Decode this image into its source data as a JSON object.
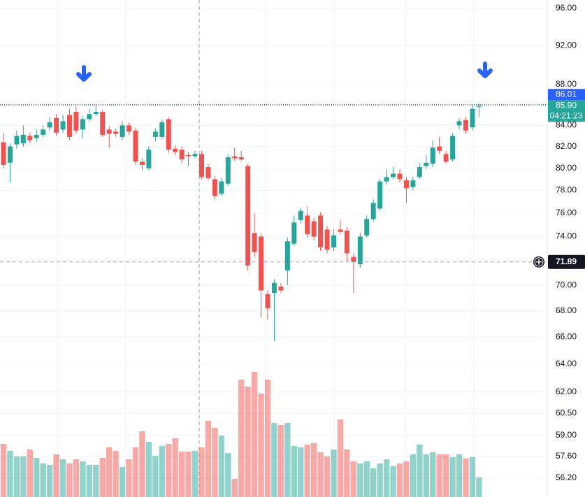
{
  "chart_data": {
    "type": "candlestick",
    "open": [
      82.4,
      80.5,
      82.2,
      82.3,
      83.0,
      82.8,
      83.1,
      83.8,
      84.7,
      83.6,
      85.0,
      85.3,
      83.6,
      84.6,
      85.1,
      85.3,
      83.6,
      83.4,
      82.9,
      84.0,
      83.5,
      80.6,
      80.0,
      82.9,
      82.9,
      84.6,
      81.8,
      81.7,
      81.2,
      81.1,
      81.3,
      80.1,
      79.0,
      77.7,
      78.6,
      81.1,
      81.0,
      80.2,
      74.3,
      74.0,
      69.3,
      69.4,
      69.9,
      71.2,
      73.4,
      75.4,
      75.8,
      75.3,
      75.8,
      74.6,
      73.1,
      74.6,
      74.5,
      72.3,
      71.7,
      74.1,
      75.5,
      76.4,
      78.8,
      79.2,
      79.5,
      78.9,
      78.3,
      79.2,
      80.2,
      80.4,
      82.0,
      81.3,
      80.8,
      84.0,
      84.5,
      83.8,
      85.8
    ],
    "high": [
      83.3,
      82.3,
      83.5,
      84.0,
      83.3,
      83.6,
      84.0,
      84.8,
      85.1,
      85.0,
      85.6,
      85.8,
      84.9,
      85.6,
      85.9,
      85.5,
      83.9,
      83.7,
      84.4,
      84.3,
      83.8,
      80.9,
      82.0,
      83.7,
      84.6,
      84.8,
      82.1,
      82.0,
      81.5,
      81.6,
      81.6,
      80.4,
      79.3,
      79.1,
      81.3,
      81.9,
      81.6,
      80.4,
      76.0,
      74.3,
      69.6,
      70.5,
      70.2,
      73.9,
      75.8,
      76.5,
      76.6,
      75.6,
      76.1,
      74.9,
      74.6,
      75.4,
      74.8,
      72.6,
      74.3,
      75.8,
      77.2,
      79.0,
      79.9,
      80.1,
      79.9,
      79.2,
      79.2,
      80.4,
      81.2,
      82.6,
      82.9,
      81.6,
      83.3,
      84.7,
      84.8,
      86.0,
      86.1
    ],
    "low": [
      80.0,
      78.7,
      81.8,
      82.0,
      82.3,
      82.5,
      82.9,
      83.5,
      83.0,
      83.3,
      82.6,
      83.2,
      82.8,
      84.4,
      84.9,
      82.9,
      81.9,
      82.9,
      82.6,
      83.1,
      80.3,
      79.8,
      79.8,
      82.5,
      82.7,
      81.4,
      81.2,
      80.5,
      80.2,
      80.9,
      79.0,
      78.9,
      77.2,
      77.5,
      78.4,
      80.7,
      80.6,
      71.2,
      72.3,
      67.5,
      67.3,
      65.7,
      69.4,
      70.0,
      73.2,
      75.1,
      73.9,
      73.7,
      72.8,
      72.6,
      72.8,
      74.2,
      71.9,
      69.4,
      71.4,
      73.9,
      75.3,
      76.2,
      78.5,
      79.0,
      78.7,
      76.9,
      78.0,
      79.0,
      79.9,
      80.1,
      81.3,
      80.4,
      80.6,
      83.6,
      83.2,
      83.5,
      84.8
    ],
    "close": [
      80.3,
      82.0,
      83.0,
      83.1,
      82.6,
      83.1,
      83.6,
      84.3,
      83.3,
      84.4,
      82.9,
      83.5,
      84.6,
      85.1,
      85.3,
      83.1,
      83.2,
      83.2,
      84.0,
      83.4,
      80.6,
      80.3,
      81.7,
      83.4,
      84.3,
      81.7,
      81.5,
      80.8,
      81.1,
      81.3,
      79.2,
      79.1,
      77.5,
      78.8,
      81.0,
      80.9,
      80.8,
      71.6,
      72.7,
      69.6,
      68.2,
      70.2,
      69.6,
      73.6,
      75.2,
      76.2,
      74.2,
      74.0,
      73.1,
      72.9,
      74.1,
      74.4,
      72.6,
      71.9,
      74.0,
      75.5,
      76.9,
      78.8,
      79.2,
      79.5,
      79.0,
      78.2,
      78.9,
      80.1,
      80.5,
      81.9,
      81.6,
      80.6,
      83.0,
      84.4,
      83.5,
      85.6,
      85.9
    ],
    "volume": [
      76,
      66,
      58,
      58,
      68,
      56,
      48,
      46,
      61,
      54,
      48,
      54,
      51,
      46,
      46,
      56,
      71,
      66,
      43,
      54,
      71,
      94,
      79,
      59,
      73,
      76,
      84,
      65,
      65,
      66,
      71,
      109,
      99,
      88,
      63,
      26,
      168,
      158,
      179,
      148,
      168,
      106,
      103,
      106,
      73,
      71,
      75,
      77,
      64,
      58,
      68,
      111,
      68,
      51,
      48,
      51,
      41,
      48,
      54,
      44,
      48,
      51,
      61,
      75,
      61,
      64,
      61,
      61,
      57,
      61,
      55,
      57,
      28
    ],
    "vlim": [
      0,
      200
    ],
    "ylim": [
      55.0,
      96.9
    ],
    "log_scale": true,
    "grid": true,
    "yticks": [
      {
        "value": 96,
        "label": "96.00"
      },
      {
        "value": 92,
        "label": "92.00"
      },
      {
        "value": 88,
        "label": "88.00"
      },
      {
        "value": 84,
        "label": "84.00"
      },
      {
        "value": 82,
        "label": "82.00"
      },
      {
        "value": 80,
        "label": "80.00"
      },
      {
        "value": 78,
        "label": "78.00"
      },
      {
        "value": 76,
        "label": "76.00"
      },
      {
        "value": 74,
        "label": "74.00"
      },
      {
        "value": 70,
        "label": "70.00"
      },
      {
        "value": 68,
        "label": "68.00"
      },
      {
        "value": 66,
        "label": "66.00"
      },
      {
        "value": 64,
        "label": "64.00"
      },
      {
        "value": 62,
        "label": "62.00"
      },
      {
        "value": 60.5,
        "label": "60.50"
      },
      {
        "value": 59,
        "label": "59.00"
      },
      {
        "value": 57.6,
        "label": "57.60"
      },
      {
        "value": 56.2,
        "label": "56.20"
      }
    ],
    "up_color": "#26a69a",
    "down_color": "#ef5350",
    "price_labels": [
      {
        "value": 86.01,
        "label": "86.01",
        "color": "#2962ff"
      },
      {
        "value": 85.9,
        "label": "85.90",
        "color": "#26a69a",
        "countdown": "04:21:23"
      }
    ],
    "crosshair": {
      "value": 71.89,
      "label": "71.89"
    }
  }
}
